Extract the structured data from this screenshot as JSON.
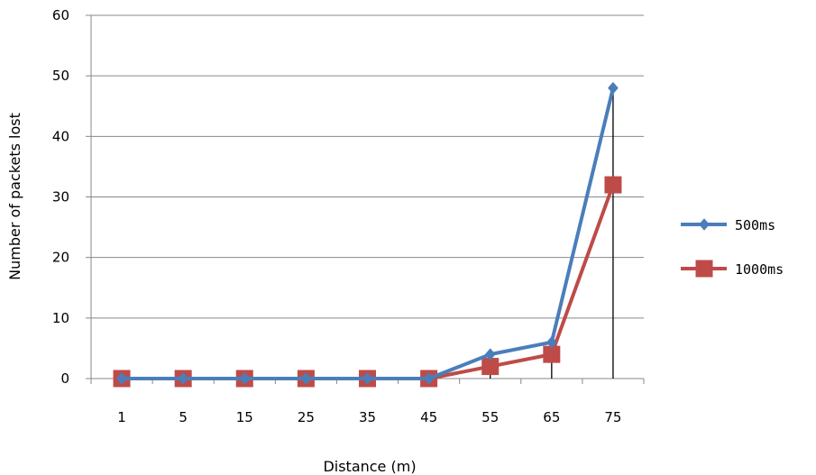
{
  "chart_data": {
    "type": "line",
    "categories": [
      "1",
      "5",
      "15",
      "25",
      "35",
      "45",
      "55",
      "65",
      "75"
    ],
    "series": [
      {
        "name": "500ms",
        "color": "#4a7ebb",
        "marker": "diamond",
        "values": [
          0,
          0,
          0,
          0,
          0,
          0,
          4,
          6,
          48
        ]
      },
      {
        "name": "1000ms",
        "color": "#be4b48",
        "marker": "square",
        "values": [
          0,
          0,
          0,
          0,
          0,
          0,
          2,
          4,
          32
        ]
      }
    ],
    "title": "",
    "xlabel": "Distance (m)",
    "ylabel": "Number of packets lost",
    "ylim": [
      0,
      60
    ],
    "yticks": [
      0,
      10,
      20,
      30,
      40,
      50,
      60
    ],
    "grid": true,
    "legend": "right",
    "drop_lines_at": [
      "55",
      "65",
      "75"
    ]
  }
}
